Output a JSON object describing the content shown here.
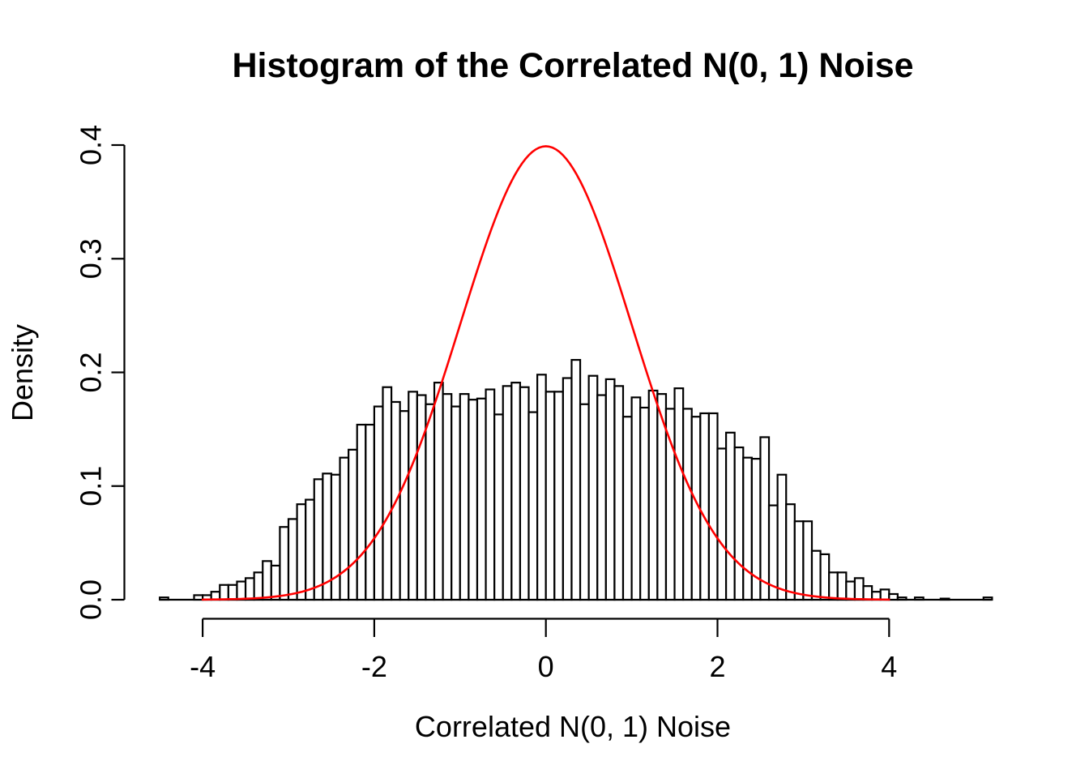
{
  "page": {
    "background_color": "#ffffff",
    "text_color": "#000000"
  },
  "chart": {
    "title": "Histogram of the Correlated N(0, 1) Noise",
    "xlabel": "Correlated N(0, 1) Noise",
    "ylabel": "Density"
  },
  "chart_data": {
    "type": "bar",
    "subtype": "histogram-with-density-overlay",
    "title": "Histogram of the Correlated N(0, 1) Noise",
    "xlabel": "Correlated N(0, 1) Noise",
    "ylabel": "Density",
    "x_tick_labels": [
      "-4",
      "-2",
      "0",
      "2",
      "4"
    ],
    "x_tick_values": [
      -4,
      -2,
      0,
      2,
      4
    ],
    "y_tick_labels": [
      "0.0",
      "0.1",
      "0.2",
      "0.3",
      "0.4"
    ],
    "y_tick_values": [
      0.0,
      0.1,
      0.2,
      0.3,
      0.4
    ],
    "xlim": [
      -4.5,
      5.2
    ],
    "ylim": [
      0.0,
      0.4
    ],
    "grid": "off",
    "legend": "none",
    "bar_fill": "#ffffff",
    "bar_stroke": "#000000",
    "axis_color": "#000000",
    "histogram": {
      "bin_start": -4.5,
      "bin_width": 0.1,
      "densities": [
        0.002,
        0,
        0,
        0,
        0.004,
        0.004,
        0.007,
        0.013,
        0.013,
        0.016,
        0.019,
        0.024,
        0.034,
        0.03,
        0.064,
        0.071,
        0.084,
        0.088,
        0.106,
        0.111,
        0.11,
        0.125,
        0.132,
        0.154,
        0.154,
        0.17,
        0.187,
        0.174,
        0.166,
        0.183,
        0.18,
        0.172,
        0.191,
        0.181,
        0.17,
        0.181,
        0.176,
        0.177,
        0.185,
        0.163,
        0.188,
        0.191,
        0.187,
        0.165,
        0.198,
        0.183,
        0.183,
        0.195,
        0.211,
        0.172,
        0.197,
        0.18,
        0.194,
        0.188,
        0.161,
        0.178,
        0.169,
        0.184,
        0.181,
        0.168,
        0.186,
        0.168,
        0.161,
        0.164,
        0.164,
        0.133,
        0.147,
        0.134,
        0.125,
        0.124,
        0.143,
        0.083,
        0.11,
        0.084,
        0.069,
        0.069,
        0.043,
        0.04,
        0.024,
        0.024,
        0.016,
        0.019,
        0.012,
        0.007,
        0.009,
        0.005,
        0.002,
        0,
        0.002,
        0,
        0,
        0.001,
        0,
        0,
        0,
        0,
        0.002
      ]
    },
    "overlay_curve": {
      "name": "N(0, 1) density",
      "distribution": "normal",
      "mean": 0,
      "sd": 1,
      "x_from": -4,
      "x_to": 4,
      "peak_density": 0.3989,
      "color": "#ff0000"
    }
  }
}
